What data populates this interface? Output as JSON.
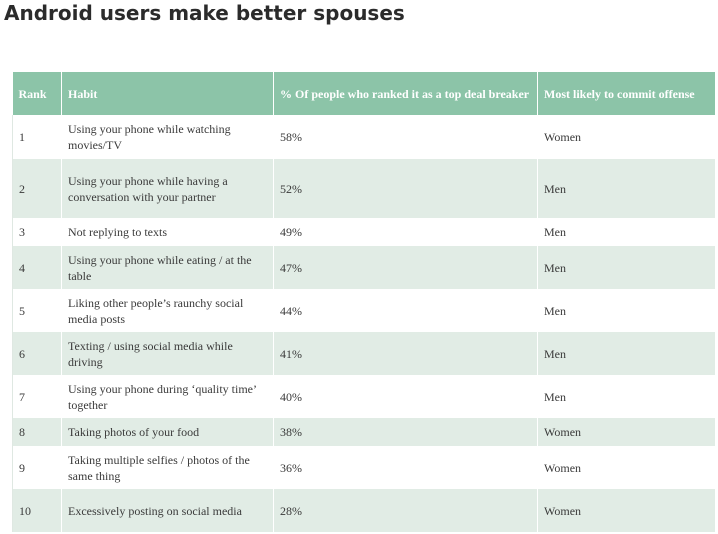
{
  "title": "Android users make better spouses",
  "table": {
    "headers": [
      "Rank",
      "Habit",
      "% Of people who ranked it as a top deal breaker",
      "Most likely to commit offense"
    ],
    "rows": [
      [
        "1",
        "Using your phone while watching movies/TV",
        "58%",
        "Women"
      ],
      [
        "2",
        "Using your phone while having a conversation with your partner",
        "52%",
        "Men"
      ],
      [
        "3",
        "Not replying to texts",
        "49%",
        "Men"
      ],
      [
        "4",
        "Using your phone while eating / at the table",
        "47%",
        "Men"
      ],
      [
        "5",
        "Liking other people’s raunchy social media posts",
        "44%",
        "Men"
      ],
      [
        "6",
        "Texting / using social media while driving",
        "41%",
        "Men"
      ],
      [
        "7",
        "Using your phone during ‘quality time’ together",
        "40%",
        "Men"
      ],
      [
        "8",
        "Taking photos of your food",
        "38%",
        "Women"
      ],
      [
        "9",
        "Taking multiple selfies / photos of the same thing",
        "36%",
        "Women"
      ],
      [
        "10",
        "Excessively posting on social media",
        "28%",
        "Women"
      ]
    ]
  },
  "colors": {
    "header_bg": "#8cc4a8",
    "stripe_bg": "#e1ece5"
  }
}
